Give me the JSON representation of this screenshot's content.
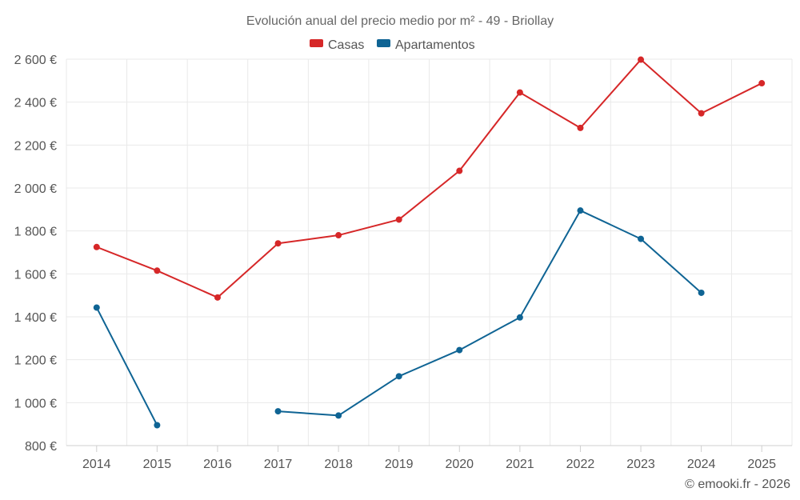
{
  "chart_data": {
    "type": "line",
    "title": "Evolución anual del precio medio por m² - 49 - Briollay",
    "categories": [
      "2014",
      "2015",
      "2016",
      "2017",
      "2018",
      "2019",
      "2020",
      "2021",
      "2022",
      "2023",
      "2024",
      "2025"
    ],
    "ylim": [
      800,
      2600
    ],
    "yticks": [
      800,
      1000,
      1200,
      1400,
      1600,
      1800,
      2000,
      2200,
      2400,
      2600
    ],
    "ytick_labels": [
      "800 €",
      "1 000 €",
      "1 200 €",
      "1 400 €",
      "1 600 €",
      "1 800 €",
      "2 000 €",
      "2 200 €",
      "2 400 €",
      "2 600 €"
    ],
    "grid": true,
    "legend_position": "top-center",
    "series": [
      {
        "name": "Casas",
        "color": "#d62728",
        "values": [
          1725,
          1615,
          1490,
          1742,
          1780,
          1853,
          2080,
          2445,
          2280,
          2598,
          2348,
          2488
        ]
      },
      {
        "name": "Apartamentos",
        "color": "#0f6494",
        "values": [
          1443,
          895,
          null,
          960,
          940,
          1123,
          1245,
          1397,
          1895,
          1763,
          1512,
          null
        ]
      }
    ]
  },
  "credit": "© emooki.fr - 2026"
}
